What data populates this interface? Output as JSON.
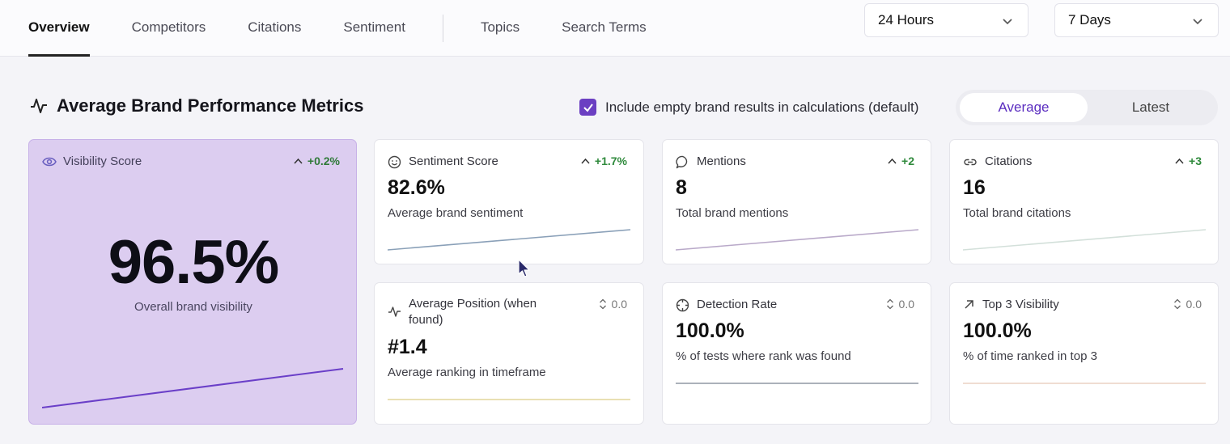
{
  "tabs": [
    {
      "label": "Overview",
      "active": true
    },
    {
      "label": "Competitors"
    },
    {
      "label": "Citations"
    },
    {
      "label": "Sentiment"
    },
    {
      "label": "Topics"
    },
    {
      "label": "Search Terms"
    }
  ],
  "filters": {
    "interval": "24 Hours",
    "range": "7 Days"
  },
  "section": {
    "title": "Average Brand Performance Metrics",
    "include_empty_label": "Include empty brand results in calculations (default)",
    "include_empty_checked": true,
    "toggle": {
      "average": "Average",
      "latest": "Latest",
      "selected": "Average"
    }
  },
  "visibility": {
    "label": "Visibility Score",
    "delta": "+0.2%",
    "value": "96.5%",
    "sub": "Overall brand visibility"
  },
  "cards": [
    {
      "key": "sentiment",
      "label": "Sentiment Score",
      "delta": "+1.7%",
      "value": "82.6%",
      "sub": "Average brand sentiment",
      "icon": "smile-icon",
      "spark_color": "#8aa0b8"
    },
    {
      "key": "mentions",
      "label": "Mentions",
      "delta": "+2",
      "value": "8",
      "sub": "Total brand mentions",
      "icon": "chat-icon",
      "spark_color": "#b9a9c9"
    },
    {
      "key": "citations",
      "label": "Citations",
      "delta": "+3",
      "value": "16",
      "sub": "Total brand citations",
      "icon": "link-icon",
      "spark_color": "#d3e0da"
    },
    {
      "key": "position",
      "label": "Average Position (when found)",
      "delta": "0.0",
      "value": "#1.4",
      "sub": "Average ranking in timeframe",
      "icon": "pulse-icon",
      "spark_color": "#e6dca8"
    },
    {
      "key": "detection",
      "label": "Detection Rate",
      "delta": "0.0",
      "value": "100.0%",
      "sub": "% of tests where rank was found",
      "icon": "crosshair-icon",
      "spark_color": "#8f97a3"
    },
    {
      "key": "top3",
      "label": "Top 3 Visibility",
      "delta": "0.0",
      "value": "100.0%",
      "sub": "% of time ranked in top 3",
      "icon": "arrow-up-right-icon",
      "spark_color": "#ecd2c4"
    }
  ],
  "colors": {
    "accent": "#6b3fc2",
    "positive": "#2f8a3c",
    "visibility_bg": "#dccdf0",
    "visibility_line": "#6a3fc8"
  }
}
